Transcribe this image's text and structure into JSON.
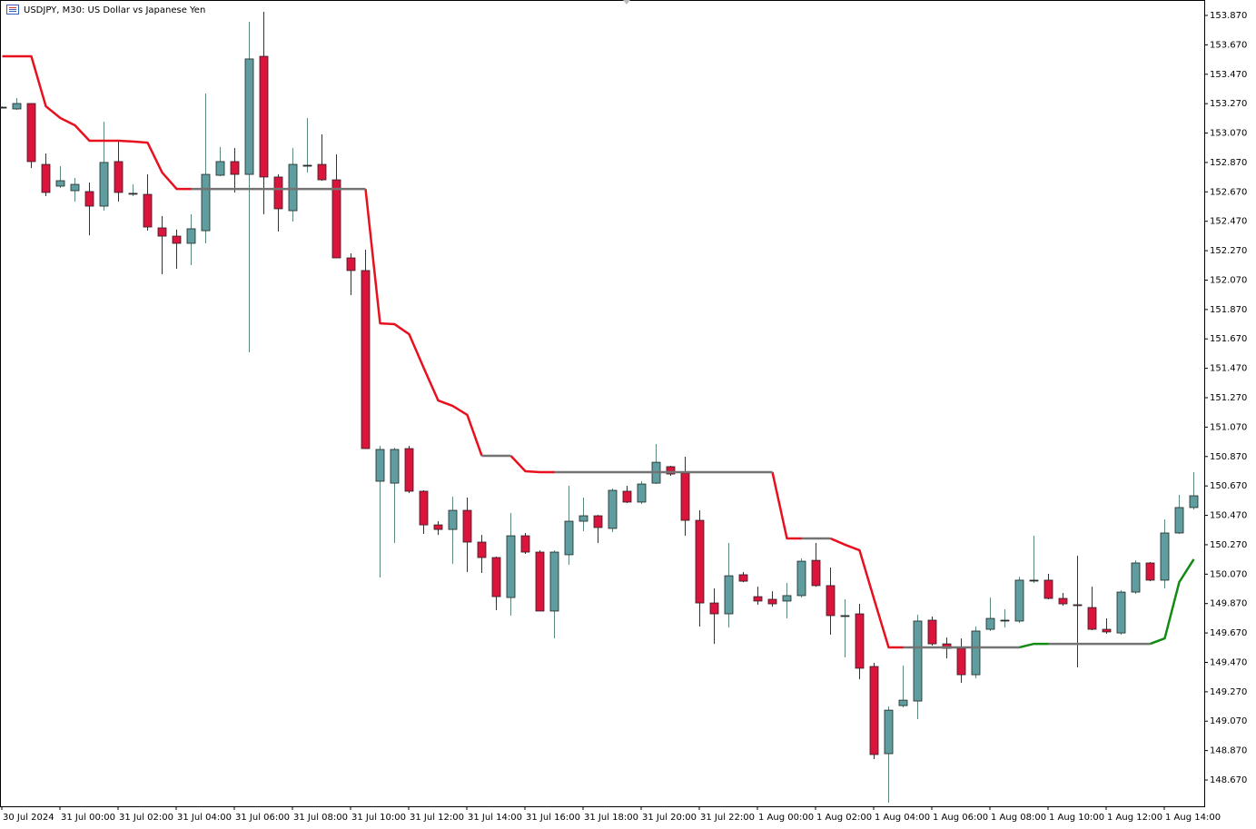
{
  "chart_data": {
    "type": "candlestick",
    "title": "USDJPY, M30:  US Dollar vs Japanese Yen",
    "categories": [
      "30 Jul 2024",
      null,
      null,
      null,
      "31 Jul 00:00",
      null,
      null,
      null,
      "31 Jul 02:00",
      null,
      null,
      null,
      "31 Jul 04:00",
      null,
      null,
      null,
      "31 Jul 06:00",
      null,
      null,
      null,
      "31 Jul 08:00",
      null,
      null,
      null,
      "31 Jul 10:00",
      null,
      null,
      null,
      "31 Jul 12:00",
      null,
      null,
      null,
      "31 Jul 14:00",
      null,
      null,
      null,
      "31 Jul 16:00",
      null,
      null,
      null,
      "31 Jul 18:00",
      null,
      null,
      null,
      "31 Jul 20:00",
      null,
      null,
      null,
      "31 Jul 22:00",
      null,
      null,
      null,
      "1 Aug 00:00",
      null,
      null,
      null,
      "1 Aug 02:00",
      null,
      null,
      null,
      "1 Aug 04:00",
      null,
      null,
      null,
      "1 Aug 06:00",
      null,
      null,
      null,
      "1 Aug 08:00",
      null,
      null,
      null,
      "1 Aug 10:00",
      null,
      null,
      null,
      "1 Aug 12:00",
      null,
      null,
      null,
      "1 Aug 14:00",
      null,
      null
    ],
    "open": [
      153.246,
      153.234,
      153.271,
      152.857,
      152.709,
      152.678,
      152.672,
      152.573,
      152.876,
      152.66,
      152.653,
      152.425,
      152.369,
      152.32,
      152.406,
      152.783,
      152.876,
      152.789,
      153.592,
      152.771,
      152.542,
      152.851,
      152.857,
      152.752,
      152.221,
      152.135,
      150.702,
      150.689,
      150.924,
      150.634,
      150.405,
      150.374,
      150.504,
      150.288,
      150.183,
      149.911,
      150.331,
      150.22,
      149.819,
      150.202,
      150.43,
      150.467,
      150.381,
      150.634,
      150.56,
      150.689,
      150.801,
      150.757,
      150.436,
      149.874,
      149.8,
      150.066,
      149.917,
      149.899,
      149.887,
      149.924,
      150.164,
      149.992,
      149.788,
      149.8,
      149.442,
      148.849,
      149.176,
      149.207,
      149.757,
      149.596,
      149.565,
      149.386,
      149.695,
      149.757,
      149.751,
      150.029,
      150.029,
      149.905,
      149.862,
      149.843,
      149.695,
      149.67,
      149.948,
      150.146,
      150.029,
      150.35,
      150.523
    ],
    "high": [
      153.252,
      153.308,
      153.271,
      152.931,
      152.845,
      152.765,
      152.734,
      153.147,
      153.018,
      152.721,
      152.789,
      152.505,
      152.413,
      152.518,
      153.339,
      152.975,
      152.968,
      153.827,
      153.895,
      152.789,
      152.968,
      153.172,
      153.061,
      152.925,
      152.252,
      152.277,
      150.943,
      150.93,
      150.943,
      150.64,
      150.43,
      150.597,
      150.591,
      150.337,
      150.189,
      150.486,
      150.35,
      150.232,
      150.232,
      150.671,
      150.591,
      150.473,
      150.652,
      150.671,
      150.702,
      150.955,
      150.807,
      150.869,
      150.504,
      149.973,
      150.282,
      150.084,
      149.985,
      149.954,
      150.01,
      150.177,
      150.282,
      150.115,
      149.899,
      149.868,
      149.467,
      149.17,
      149.448,
      149.794,
      149.782,
      149.639,
      149.633,
      149.714,
      149.911,
      149.831,
      150.053,
      150.331,
      150.072,
      149.942,
      150.195,
      149.985,
      149.769,
      149.961,
      150.164,
      150.152,
      150.442,
      150.609,
      150.764
    ],
    "low": [
      153.24,
      153.228,
      152.832,
      152.641,
      152.697,
      152.604,
      152.375,
      152.542,
      152.604,
      152.641,
      152.406,
      152.11,
      152.147,
      152.172,
      152.32,
      152.777,
      152.666,
      151.579,
      152.518,
      152.4,
      152.468,
      152.802,
      152.746,
      152.221,
      151.968,
      150.924,
      150.047,
      150.282,
      150.621,
      150.344,
      150.337,
      150.14,
      150.084,
      150.078,
      149.825,
      149.788,
      150.208,
      149.819,
      149.633,
      150.134,
      150.362,
      150.282,
      150.356,
      150.554,
      150.547,
      150.683,
      150.739,
      150.331,
      149.714,
      149.596,
      149.707,
      150.016,
      149.862,
      149.849,
      149.769,
      149.911,
      149.985,
      149.658,
      149.504,
      149.355,
      148.812,
      148.515,
      149.164,
      149.084,
      149.584,
      149.497,
      149.331,
      149.362,
      149.683,
      149.707,
      149.738,
      150.01,
      149.899,
      149.856,
      149.436,
      149.689,
      149.664,
      149.658,
      149.936,
      150.022,
      149.973,
      150.344,
      150.51
    ],
    "close": [
      153.246,
      153.271,
      152.876,
      152.666,
      152.746,
      152.721,
      152.573,
      152.87,
      152.666,
      152.66,
      152.431,
      152.369,
      152.32,
      152.419,
      152.789,
      152.876,
      152.789,
      153.574,
      152.771,
      152.555,
      152.857,
      152.851,
      152.752,
      152.221,
      152.135,
      150.924,
      150.918,
      150.918,
      150.634,
      150.405,
      150.374,
      150.504,
      150.288,
      150.183,
      149.917,
      150.331,
      150.22,
      149.819,
      150.22,
      150.43,
      150.467,
      150.387,
      150.64,
      150.56,
      150.683,
      150.831,
      150.751,
      150.436,
      149.874,
      149.8,
      150.059,
      150.022,
      149.887,
      149.868,
      149.924,
      150.158,
      149.992,
      149.788,
      149.788,
      149.43,
      148.843,
      149.145,
      149.213,
      149.751,
      149.596,
      149.565,
      149.386,
      149.683,
      149.769,
      149.757,
      150.029,
      150.029,
      149.905,
      149.868,
      149.856,
      149.695,
      149.677,
      149.948,
      150.146,
      150.029,
      150.35,
      150.523,
      150.603
    ],
    "up_color": "#5f9ea0",
    "down_color": "#dc143c",
    "doji_color": "#404040",
    "series": [
      {
        "color": "#e8101e",
        "values": [
          153.592,
          153.592,
          153.592,
          153.252,
          153.172,
          153.123,
          153.018,
          153.018,
          153.018,
          153.012,
          153.005,
          152.802,
          152.69,
          152.69,
          null,
          null,
          null,
          null,
          null,
          null,
          null,
          null,
          null,
          null,
          null,
          152.69,
          151.776,
          151.77,
          151.702,
          151.474,
          151.251,
          151.214,
          151.153,
          150.875,
          null,
          150.875,
          150.77,
          150.764,
          150.764,
          null,
          null,
          null,
          null,
          null,
          null,
          null,
          null,
          null,
          null,
          null,
          null,
          null,
          null,
          150.764,
          150.313,
          150.313,
          null,
          150.313,
          150.27,
          150.232,
          149.899,
          149.572,
          149.572,
          null,
          null,
          null,
          null,
          null,
          null,
          null,
          null,
          null,
          null,
          null,
          null,
          null,
          null,
          null,
          null,
          null,
          null,
          null,
          null
        ]
      },
      {
        "color": "#737373",
        "values": [
          null,
          null,
          null,
          null,
          null,
          null,
          null,
          null,
          null,
          null,
          null,
          null,
          null,
          152.69,
          152.69,
          152.69,
          152.69,
          152.69,
          152.69,
          152.69,
          152.69,
          152.69,
          152.69,
          152.69,
          152.69,
          152.69,
          null,
          null,
          null,
          null,
          null,
          null,
          null,
          150.875,
          150.875,
          150.875,
          null,
          null,
          150.764,
          150.764,
          150.764,
          150.764,
          150.764,
          150.764,
          150.764,
          150.764,
          150.764,
          150.764,
          150.764,
          150.764,
          150.764,
          150.764,
          150.764,
          150.764,
          null,
          150.313,
          150.313,
          150.313,
          null,
          null,
          null,
          null,
          149.572,
          149.572,
          149.572,
          149.572,
          149.572,
          149.572,
          149.572,
          149.572,
          149.572,
          null,
          149.596,
          149.596,
          149.596,
          149.596,
          149.596,
          149.596,
          149.596,
          149.596,
          null,
          null,
          null
        ]
      },
      {
        "color": "#138a13",
        "values": [
          null,
          null,
          null,
          null,
          null,
          null,
          null,
          null,
          null,
          null,
          null,
          null,
          null,
          null,
          null,
          null,
          null,
          null,
          null,
          null,
          null,
          null,
          null,
          null,
          null,
          null,
          null,
          null,
          null,
          null,
          null,
          null,
          null,
          null,
          null,
          null,
          null,
          null,
          null,
          null,
          null,
          null,
          null,
          null,
          null,
          null,
          null,
          null,
          null,
          null,
          null,
          null,
          null,
          null,
          null,
          null,
          null,
          null,
          null,
          null,
          null,
          null,
          null,
          null,
          null,
          null,
          null,
          null,
          null,
          null,
          149.572,
          149.596,
          149.596,
          null,
          null,
          null,
          null,
          null,
          null,
          149.596,
          149.633,
          150.016,
          150.171
        ]
      }
    ],
    "ylim": [
      148.491,
      153.975
    ],
    "yticks": [
      {
        "value": 153.87,
        "label": "153.870"
      },
      {
        "value": 153.67,
        "label": "153.670"
      },
      {
        "value": 153.47,
        "label": "153.470"
      },
      {
        "value": 153.27,
        "label": "153.270"
      },
      {
        "value": 153.07,
        "label": "153.070"
      },
      {
        "value": 152.87,
        "label": "152.870"
      },
      {
        "value": 152.67,
        "label": "152.670"
      },
      {
        "value": 152.47,
        "label": "152.470"
      },
      {
        "value": 152.27,
        "label": "152.270"
      },
      {
        "value": 152.07,
        "label": "152.070"
      },
      {
        "value": 151.87,
        "label": "151.870"
      },
      {
        "value": 151.67,
        "label": "151.670"
      },
      {
        "value": 151.47,
        "label": "151.470"
      },
      {
        "value": 151.27,
        "label": "151.270"
      },
      {
        "value": 151.07,
        "label": "151.070"
      },
      {
        "value": 150.87,
        "label": "150.870"
      },
      {
        "value": 150.67,
        "label": "150.670"
      },
      {
        "value": 150.47,
        "label": "150.470"
      },
      {
        "value": 150.27,
        "label": "150.270"
      },
      {
        "value": 150.07,
        "label": "150.070"
      },
      {
        "value": 149.87,
        "label": "149.870"
      },
      {
        "value": 149.67,
        "label": "149.670"
      },
      {
        "value": 149.47,
        "label": "149.470"
      },
      {
        "value": 149.27,
        "label": "149.270"
      },
      {
        "value": 149.07,
        "label": "149.070"
      },
      {
        "value": 148.87,
        "label": "148.870"
      },
      {
        "value": 148.67,
        "label": "148.670"
      }
    ],
    "grid": false
  }
}
